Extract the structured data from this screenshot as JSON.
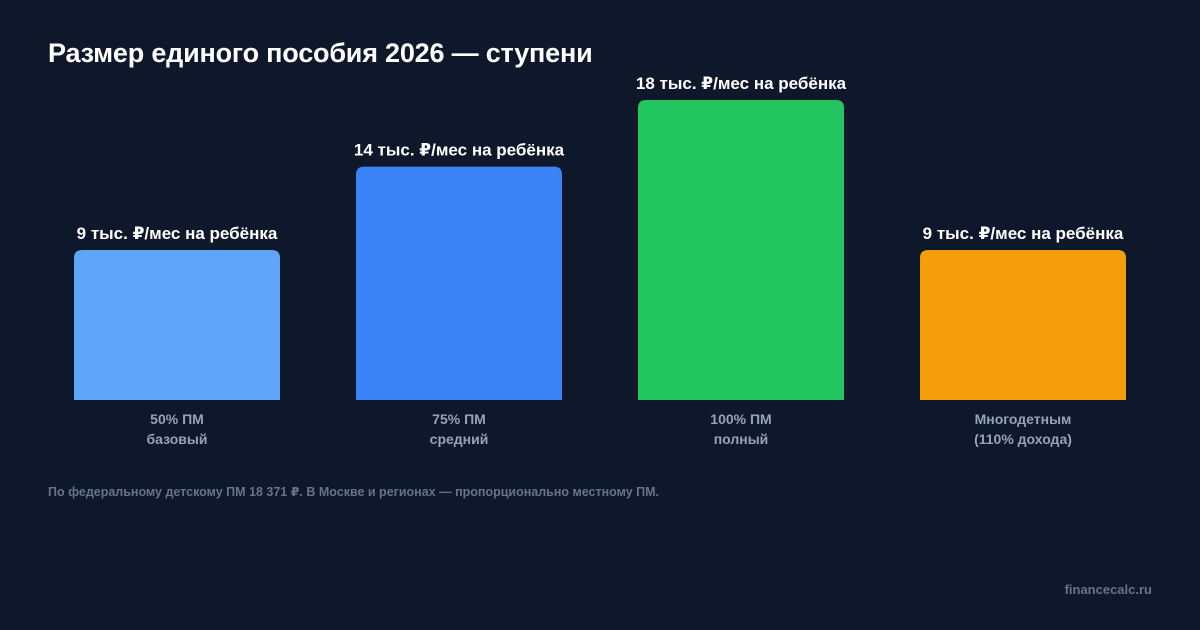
{
  "chart_data": {
    "type": "bar",
    "title": "Размер единого пособия 2026 — ступени",
    "categories": [
      [
        "50% ПМ",
        "базовый"
      ],
      [
        "75% ПМ",
        "средний"
      ],
      [
        "100% ПМ",
        "полный"
      ],
      [
        "Многодетным",
        "(110% дохода)"
      ]
    ],
    "values": [
      9,
      14,
      18,
      9
    ],
    "data_labels": [
      "9 тыс. ₽/мес на ребёнка",
      "14 тыс. ₽/мес на ребёнка",
      "18 тыс. ₽/мес на ребёнка",
      "9 тыс. ₽/мес на ребёнка"
    ],
    "colors": [
      "#60a5fa",
      "#3b82f6",
      "#22c55e",
      "#f59e0b"
    ],
    "ylim": [
      0,
      18
    ],
    "grid": false,
    "legend": "none",
    "xlabel": "",
    "ylabel": ""
  },
  "footnote": "По федеральному детскому ПМ 18 371 ₽. В Москве и регионах — пропорционально местному ПМ.",
  "brand": "financecalc.ru"
}
